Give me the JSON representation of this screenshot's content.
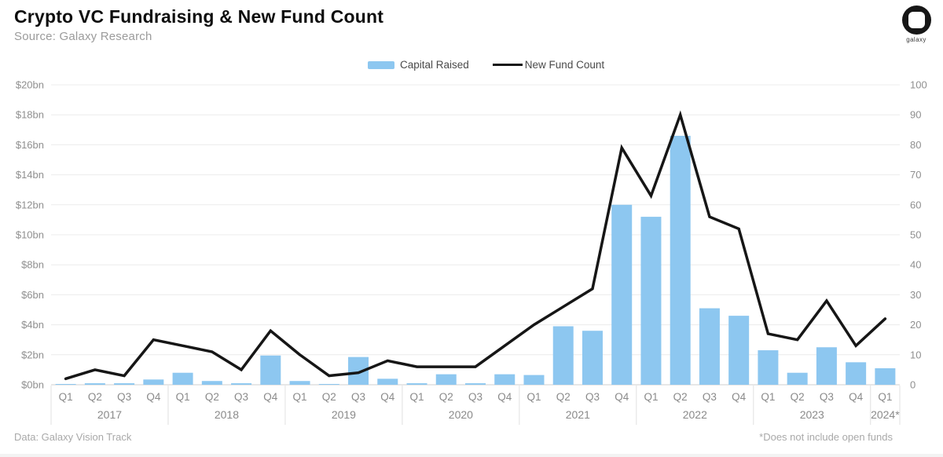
{
  "header": {
    "logo_label": "galaxy"
  },
  "chart_data": {
    "type": "combo",
    "title": "Crypto VC Fundraising & New Fund Count",
    "source": "Source: Galaxy Research",
    "grid": "horizontal",
    "legend_position": "top-center",
    "x": {
      "quarter_labels": [
        "Q1",
        "Q2",
        "Q3",
        "Q4",
        "Q1",
        "Q2",
        "Q3",
        "Q4",
        "Q1",
        "Q2",
        "Q3",
        "Q4",
        "Q1",
        "Q2",
        "Q3",
        "Q4",
        "Q1",
        "Q2",
        "Q3",
        "Q4",
        "Q1",
        "Q2",
        "Q3",
        "Q4",
        "Q1",
        "Q2",
        "Q3",
        "Q4",
        "Q1"
      ],
      "year_groups": [
        {
          "year": "2017",
          "quarters": 4
        },
        {
          "year": "2018",
          "quarters": 4
        },
        {
          "year": "2019",
          "quarters": 4
        },
        {
          "year": "2020",
          "quarters": 4
        },
        {
          "year": "2021",
          "quarters": 4
        },
        {
          "year": "2022",
          "quarters": 4
        },
        {
          "year": "2023",
          "quarters": 4
        },
        {
          "year": "2024*",
          "quarters": 1
        }
      ]
    },
    "left_axis": {
      "tick_labels": [
        "$0bn",
        "$2bn",
        "$4bn",
        "$6bn",
        "$8bn",
        "$10bn",
        "$12bn",
        "$14bn",
        "$16bn",
        "$18bn",
        "$20bn"
      ],
      "min": 0,
      "max": 20,
      "step": 2
    },
    "right_axis": {
      "tick_labels": [
        "0",
        "10",
        "20",
        "30",
        "40",
        "50",
        "60",
        "70",
        "80",
        "90",
        "100"
      ],
      "min": 0,
      "max": 100,
      "step": 10
    },
    "series": [
      {
        "name": "Capital Raised",
        "type": "bar",
        "axis": "left",
        "unit": "$bn",
        "color": "#8DC7F0",
        "values": [
          0.05,
          0.1,
          0.1,
          0.35,
          0.8,
          0.25,
          0.1,
          1.95,
          0.25,
          0.05,
          1.85,
          0.4,
          0.1,
          0.7,
          0.1,
          0.7,
          0.65,
          3.9,
          3.6,
          12.0,
          11.2,
          16.6,
          5.1,
          4.6,
          2.3,
          0.8,
          2.5,
          1.5,
          1.1
        ]
      },
      {
        "name": "New Fund Count",
        "type": "line",
        "axis": "right",
        "color": "#161616",
        "values": [
          2,
          5,
          3,
          15,
          13,
          11,
          5,
          18,
          10,
          3,
          4,
          8,
          6,
          6,
          6,
          13,
          20,
          26,
          32,
          79,
          63,
          90,
          56,
          52,
          17,
          15,
          28,
          13,
          22
        ]
      }
    ]
  },
  "footer": {
    "data_note": "Data: Galaxy Vision Track",
    "footnote": "*Does not include open funds"
  },
  "colors": {
    "bar": "#8DC7F0",
    "line": "#161616",
    "gridline": "#ececec",
    "axis_text": "#8f8f8f"
  }
}
